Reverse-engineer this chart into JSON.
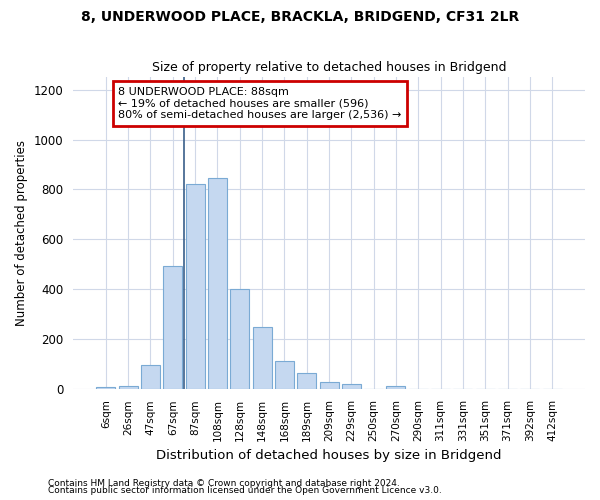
{
  "title1": "8, UNDERWOOD PLACE, BRACKLA, BRIDGEND, CF31 2LR",
  "title2": "Size of property relative to detached houses in Bridgend",
  "xlabel": "Distribution of detached houses by size in Bridgend",
  "ylabel": "Number of detached properties",
  "categories": [
    "6sqm",
    "26sqm",
    "47sqm",
    "67sqm",
    "87sqm",
    "108sqm",
    "128sqm",
    "148sqm",
    "168sqm",
    "189sqm",
    "209sqm",
    "229sqm",
    "250sqm",
    "270sqm",
    "290sqm",
    "311sqm",
    "331sqm",
    "351sqm",
    "371sqm",
    "392sqm",
    "412sqm"
  ],
  "values": [
    8,
    13,
    97,
    492,
    820,
    845,
    400,
    250,
    115,
    65,
    30,
    20,
    0,
    13,
    0,
    0,
    0,
    0,
    0,
    0,
    0
  ],
  "bar_color": "#c5d8f0",
  "bar_edge_color": "#7aaad4",
  "vline_x_index": 4,
  "vline_color": "#3a5f8a",
  "annotation_text": "8 UNDERWOOD PLACE: 88sqm\n← 19% of detached houses are smaller (596)\n80% of semi-detached houses are larger (2,536) →",
  "annotation_box_color": "#ffffff",
  "annotation_box_edge": "#cc0000",
  "footer1": "Contains HM Land Registry data © Crown copyright and database right 2024.",
  "footer2": "Contains public sector information licensed under the Open Government Licence v3.0.",
  "ylim": [
    0,
    1250
  ],
  "yticks": [
    0,
    200,
    400,
    600,
    800,
    1000,
    1200
  ],
  "bg_color": "#ffffff",
  "grid_color": "#d0d8e8",
  "title1_fontsize": 10,
  "title2_fontsize": 9,
  "bar_width": 0.85
}
